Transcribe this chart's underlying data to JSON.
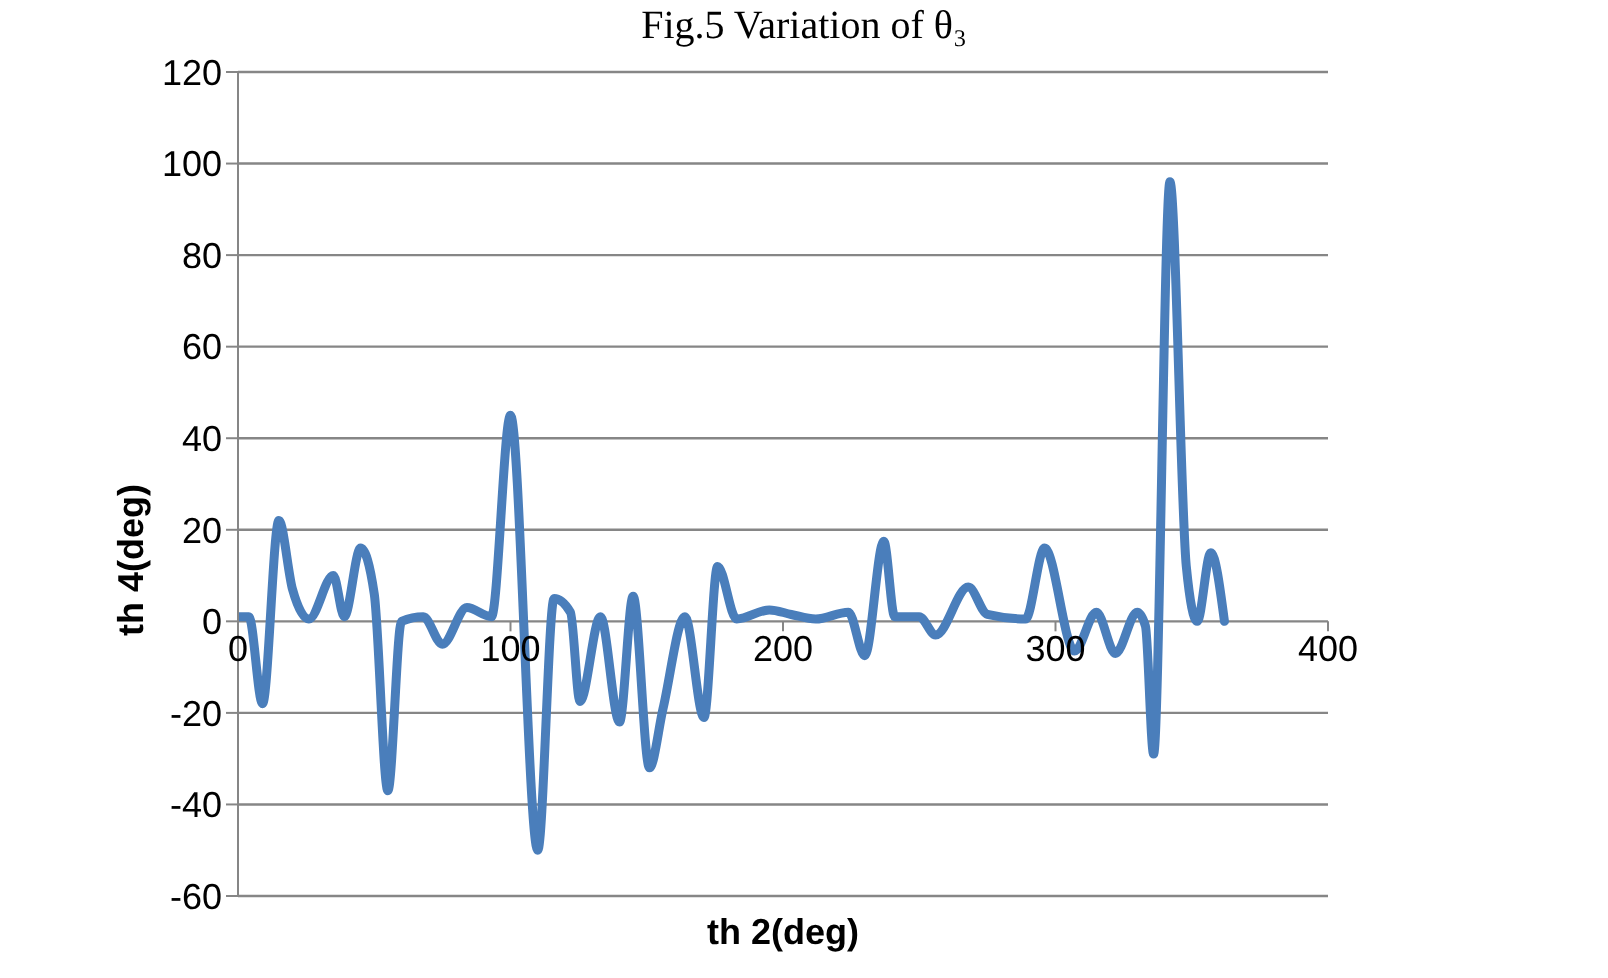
{
  "chart_data": {
    "type": "line",
    "title": "Fig.5 Variation of θ₃",
    "xlabel": "th 2(deg)",
    "ylabel": "th 4(deg)",
    "x": [
      0,
      4,
      9,
      15,
      20,
      26,
      35,
      39,
      45,
      50,
      55,
      60,
      68,
      75,
      84,
      93,
      100,
      110,
      116,
      122,
      125.5,
      133,
      140,
      145,
      151,
      156,
      164,
      171,
      176,
      183,
      195,
      203,
      212,
      224,
      230,
      237,
      241,
      250,
      256,
      268,
      275,
      289,
      296,
      307,
      315,
      322,
      330,
      333,
      336,
      342,
      348,
      352,
      357,
      362
    ],
    "series": [
      {
        "color": "#4a7ebb",
        "values": [
          1,
          1,
          -18,
          22,
          7,
          0.5,
          10,
          1,
          16,
          6,
          -37,
          0,
          1,
          -5,
          3,
          1,
          45,
          -50,
          5,
          2,
          -17.5,
          1,
          -22,
          5.5,
          -32,
          -19,
          1,
          -21,
          12,
          0.5,
          2.5,
          1.5,
          0.5,
          2,
          -7.5,
          17.5,
          1,
          1,
          -3,
          7.5,
          1.5,
          0.5,
          16,
          -6.5,
          2,
          -7,
          2,
          -1,
          -29,
          96,
          12,
          0,
          15,
          0
        ]
      }
    ],
    "xlim": [
      0,
      400
    ],
    "xticks": [
      0,
      100,
      200,
      300,
      400
    ],
    "ylim": [
      -60,
      120
    ],
    "yticks": [
      -60,
      -40,
      -20,
      0,
      20,
      40,
      60,
      80,
      100,
      120
    ],
    "grid": "y",
    "marker": "none",
    "line_style": "solid"
  }
}
